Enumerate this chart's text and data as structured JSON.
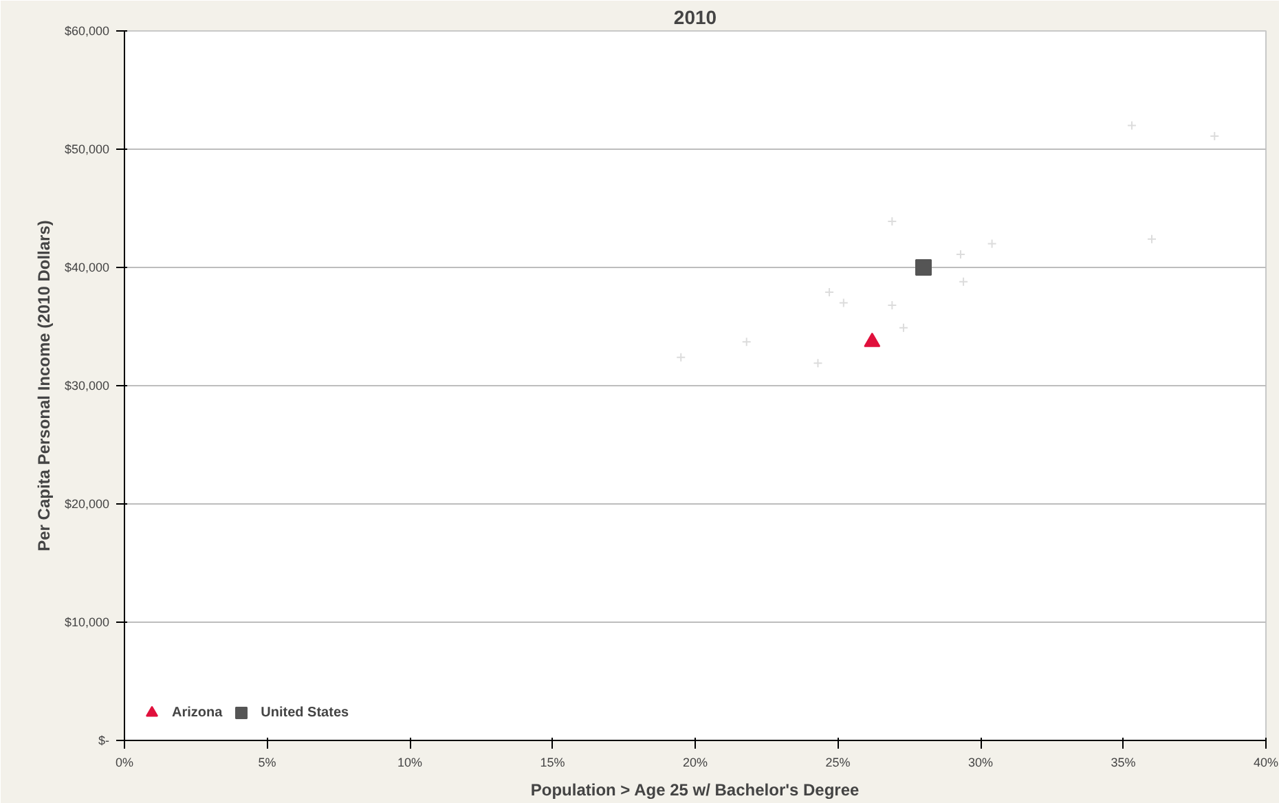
{
  "chart_data": {
    "type": "scatter",
    "title": "2010",
    "xlabel": "Population > Age 25 w/ Bachelor's Degree",
    "ylabel": "Per Capita Personal Income (2010 Dollars)",
    "xlim": [
      0,
      40
    ],
    "xticks": [
      {
        "value": 0,
        "label": "0%"
      },
      {
        "value": 5,
        "label": "5%"
      },
      {
        "value": 10,
        "label": "10%"
      },
      {
        "value": 15,
        "label": "15%"
      },
      {
        "value": 20,
        "label": "20%"
      },
      {
        "value": 25,
        "label": "25%"
      },
      {
        "value": 30,
        "label": "30%"
      },
      {
        "value": 35,
        "label": "35%"
      },
      {
        "value": 40,
        "label": "40%"
      }
    ],
    "ylim": [
      0,
      60000
    ],
    "yticks": [
      {
        "value": 0,
        "label": "$-"
      },
      {
        "value": 10000,
        "label": "$10,000"
      },
      {
        "value": 20000,
        "label": "$20,000"
      },
      {
        "value": 30000,
        "label": "$30,000"
      },
      {
        "value": 40000,
        "label": "$40,000"
      },
      {
        "value": 50000,
        "label": "$50,000"
      },
      {
        "value": 60000,
        "label": "$60,000"
      }
    ],
    "grid": "y",
    "legend": "bottom left",
    "series": [
      {
        "color": "#dcdcdc",
        "marker": "cross",
        "x": [
          19.5,
          21.8,
          24.7,
          25.2,
          26.9,
          27.3,
          26.9,
          30.4,
          29.3,
          29.4,
          36.0,
          35.3,
          38.2,
          24.3
        ],
        "values": [
          32400,
          33700,
          37900,
          37000,
          36800,
          34900,
          43900,
          42000,
          41100,
          38800,
          42400,
          52000,
          51100,
          31900
        ]
      },
      {
        "name": "Arizona",
        "color": "#e0103c",
        "marker": "triangle",
        "x": [
          26.2
        ],
        "values": [
          33700
        ]
      },
      {
        "name": "United States",
        "color": "#555555",
        "marker": "square",
        "x": [
          28.0
        ],
        "values": [
          40000
        ]
      }
    ]
  }
}
